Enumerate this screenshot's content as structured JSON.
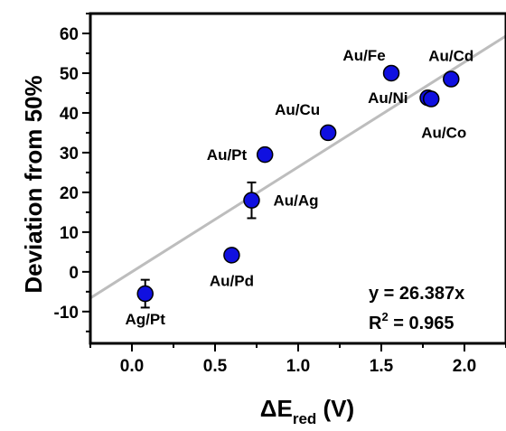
{
  "chart_data": {
    "type": "scatter",
    "xlabel": "ΔE",
    "xlabel_subscript": "red",
    "xlabel_unit": " (V)",
    "ylabel": "Deviation from 50%",
    "xlim": [
      -0.25,
      2.25
    ],
    "ylim": [
      -18,
      65
    ],
    "xticks": [
      0.0,
      0.5,
      1.0,
      1.5,
      2.0
    ],
    "xtick_labels": [
      "0.0",
      "0.5",
      "1.0",
      "1.5",
      "2.0"
    ],
    "yticks": [
      -10,
      0,
      10,
      20,
      30,
      40,
      50,
      60
    ],
    "ytick_labels": [
      "-10",
      "0",
      "10",
      "20",
      "30",
      "40",
      "50",
      "60"
    ],
    "grid": false,
    "points": [
      {
        "label": "Ag/Pt",
        "x": 0.08,
        "y": -5.5,
        "err": 3.5
      },
      {
        "label": "Au/Pd",
        "x": 0.6,
        "y": 4.2,
        "err": 1.0
      },
      {
        "label": "Au/Ag",
        "x": 0.72,
        "y": 18.0,
        "err": 4.5
      },
      {
        "label": "Au/Pt",
        "x": 0.8,
        "y": 29.5,
        "err": 1.5
      },
      {
        "label": "Au/Cu",
        "x": 1.18,
        "y": 35.0,
        "err": 1.0
      },
      {
        "label": "Au/Fe",
        "x": 1.56,
        "y": 50.0,
        "err": 0.5
      },
      {
        "label": "Au/Ni",
        "x": 1.78,
        "y": 43.8,
        "err": 1.0
      },
      {
        "label": "Au/Co",
        "x": 1.8,
        "y": 43.5,
        "err": 1.0
      },
      {
        "label": "Au/Cd",
        "x": 1.92,
        "y": 48.5,
        "err": 1.0
      }
    ],
    "fit": {
      "slope": 26.387,
      "intercept": 0,
      "equation": "y = 26.387x",
      "r2_label": "R",
      "r2_exponent": "2",
      "r2_value": " = 0.965"
    },
    "colors": {
      "marker": "#1010e0",
      "marker_edge": "#000000",
      "fit_line": "#bdbdbd"
    }
  }
}
